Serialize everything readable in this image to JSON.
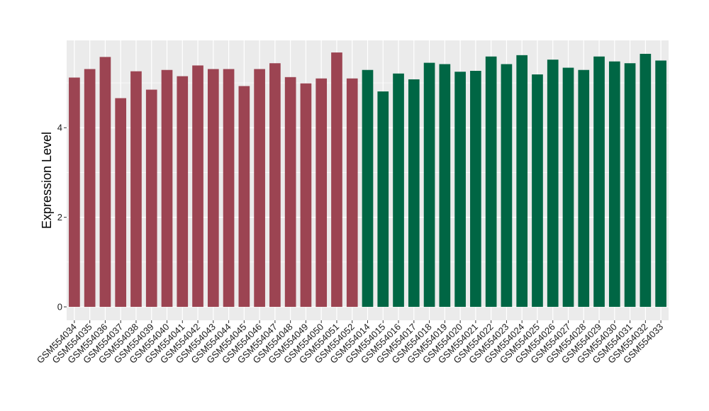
{
  "chart_data": {
    "type": "bar",
    "ylabel": "Expression Level",
    "xlabel": "",
    "title": "",
    "ylim": [
      -0.3,
      5.95
    ],
    "yticks": [
      0,
      2,
      4
    ],
    "grid": true,
    "background": "#EBEBEB",
    "gridline_color": "#FFFFFF",
    "categories": [
      "GSM554034",
      "GSM554035",
      "GSM554036",
      "GSM554037",
      "GSM554038",
      "GSM554039",
      "GSM554040",
      "GSM554041",
      "GSM554042",
      "GSM554043",
      "GSM554044",
      "GSM554045",
      "GSM554046",
      "GSM554047",
      "GSM554048",
      "GSM554049",
      "GSM554050",
      "GSM554051",
      "GSM554052",
      "GSM554014",
      "GSM554015",
      "GSM554016",
      "GSM554017",
      "GSM554018",
      "GSM554019",
      "GSM554020",
      "GSM554021",
      "GSM554022",
      "GSM554023",
      "GSM554024",
      "GSM554025",
      "GSM554026",
      "GSM554027",
      "GSM554028",
      "GSM554029",
      "GSM554030",
      "GSM554031",
      "GSM554032",
      "GSM554033"
    ],
    "values": [
      5.12,
      5.31,
      5.58,
      4.66,
      5.26,
      4.85,
      5.29,
      5.15,
      5.39,
      5.31,
      5.31,
      4.93,
      5.31,
      5.44,
      5.13,
      4.99,
      5.1,
      5.68,
      5.1,
      5.29,
      4.81,
      5.21,
      5.08,
      5.45,
      5.42,
      5.25,
      5.27,
      5.59,
      5.42,
      5.62,
      5.19,
      5.52,
      5.34,
      5.29,
      5.59,
      5.48,
      5.44,
      5.65,
      5.5
    ],
    "groups": [
      {
        "color": "#9C4452",
        "count": 19
      },
      {
        "color": "#006644",
        "count": 20
      }
    ]
  }
}
